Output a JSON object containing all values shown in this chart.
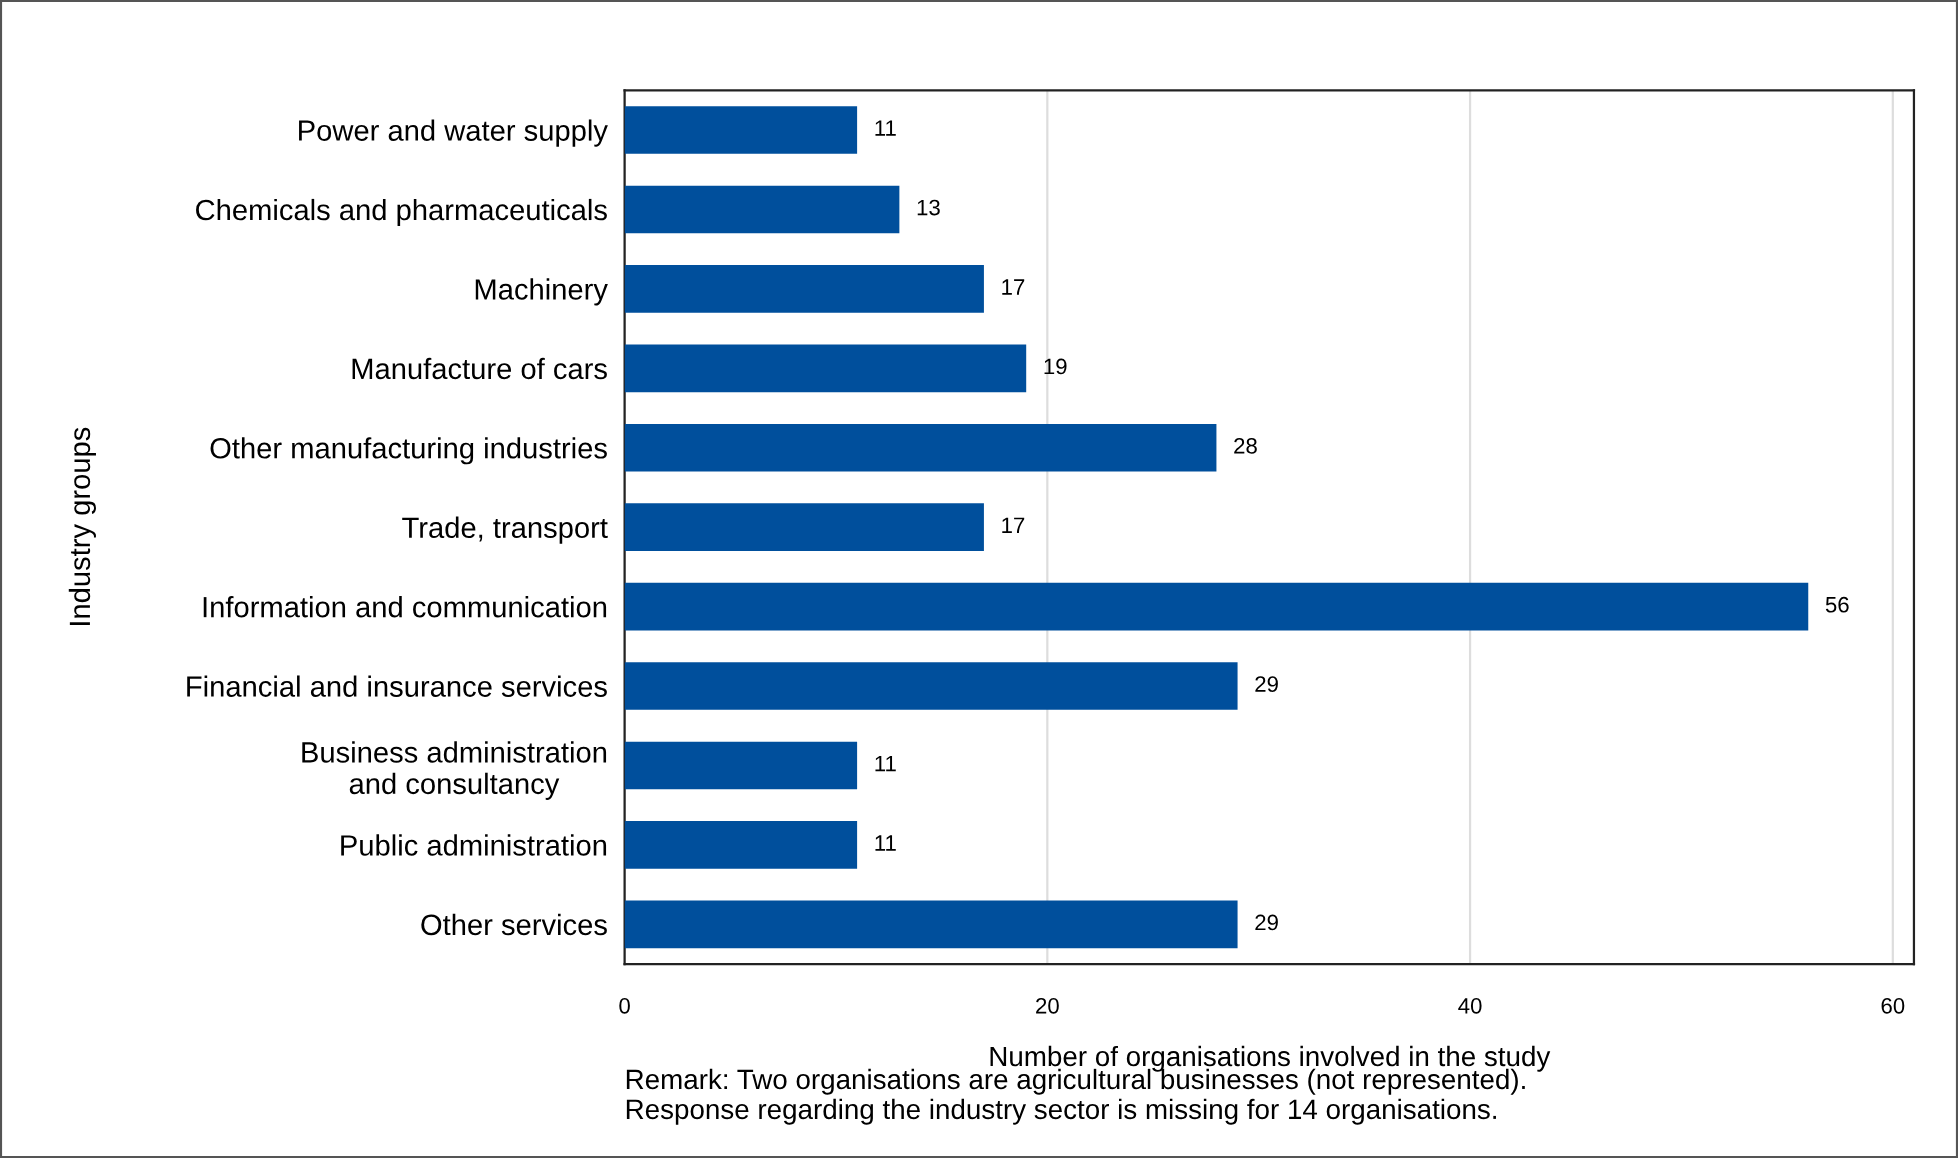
{
  "chart_data": {
    "type": "bar",
    "orientation": "horizontal",
    "categories": [
      "Power and water supply",
      "Chemicals and pharmaceuticals",
      "Machinery",
      "Manufacture of cars",
      "Other manufacturing industries",
      "Trade, transport",
      "Information and communication",
      "Financial and insurance services",
      "Business administration\nand consultancy",
      "Public administration",
      "Other services"
    ],
    "values": [
      11,
      13,
      17,
      19,
      28,
      17,
      56,
      29,
      11,
      11,
      29
    ],
    "color": "#004f9c",
    "data_labels": true,
    "xlim": [
      0,
      61
    ],
    "xticks": [
      0,
      20,
      40,
      60
    ],
    "grid": "x",
    "legend": false,
    "xlabel": "Number of organisations involved in the study",
    "ylabel": "Industry groups",
    "annotations": [
      "Remark: Two organisations are agricultural businesses (not represented).\nResponse regarding the industry sector is missing for 14 organisations."
    ]
  }
}
